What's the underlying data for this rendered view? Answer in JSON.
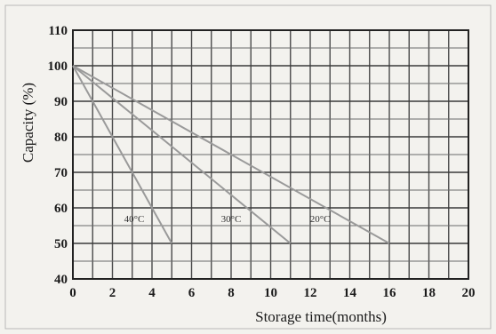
{
  "chart_data": {
    "type": "line",
    "title": "",
    "xlabel": "Storage time(months)",
    "ylabel": "Capacity (%)",
    "xlim": [
      0,
      20
    ],
    "ylim": [
      40,
      110
    ],
    "x_ticks": [
      0,
      2,
      4,
      6,
      8,
      10,
      12,
      14,
      16,
      18,
      20
    ],
    "x_tick_labels": [
      "0",
      "2",
      "4",
      "6",
      "8",
      "10",
      "12",
      "14",
      "16",
      "18",
      "20"
    ],
    "y_ticks": [
      40,
      50,
      60,
      70,
      80,
      90,
      100,
      110
    ],
    "y_tick_labels": [
      "40",
      "50",
      "60",
      "70",
      "80",
      "90",
      "100",
      "110"
    ],
    "grid": true,
    "series": [
      {
        "name": "40°C",
        "x": [
          0,
          5
        ],
        "y": [
          100,
          50
        ]
      },
      {
        "name": "30°C",
        "x": [
          0,
          11
        ],
        "y": [
          100,
          50
        ]
      },
      {
        "name": "20°C",
        "x": [
          0,
          16
        ],
        "y": [
          100,
          50
        ]
      }
    ],
    "series_label_positions": [
      {
        "x": 3.1,
        "y": 56
      },
      {
        "x": 8.0,
        "y": 56
      },
      {
        "x": 12.5,
        "y": 56
      }
    ]
  }
}
